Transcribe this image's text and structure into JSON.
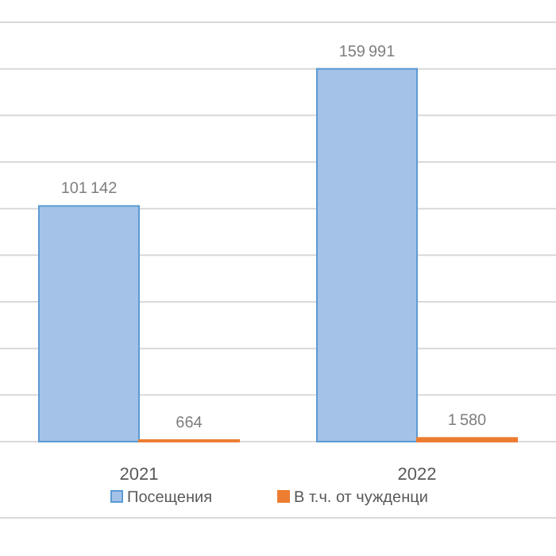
{
  "chart_data": {
    "type": "bar",
    "categories": [
      "2021",
      "2022"
    ],
    "series": [
      {
        "name": "Посещения",
        "color": "#a4c2e8",
        "values": [
          101142,
          159991
        ]
      },
      {
        "name": "В т.ч. от чужденци",
        "color": "#ed7d31",
        "values": [
          664,
          1580
        ]
      }
    ],
    "ylim": [
      0,
      180000
    ],
    "yticks": [
      {
        "value": 0,
        "label": null
      },
      {
        "value": 20000,
        "label": null
      },
      {
        "value": 40000,
        "label": null
      },
      {
        "value": 60000,
        "label": null
      },
      {
        "value": 80000,
        "label": null
      },
      {
        "value": 100000,
        "label": null
      },
      {
        "value": 120000,
        "label": null
      },
      {
        "value": 140000,
        "label": null
      },
      {
        "value": 160000,
        "label": null
      },
      {
        "value": 180000,
        "label": null
      }
    ],
    "grid": "y",
    "tick_labels": "x",
    "data_labels": true,
    "legend": "bottom"
  }
}
